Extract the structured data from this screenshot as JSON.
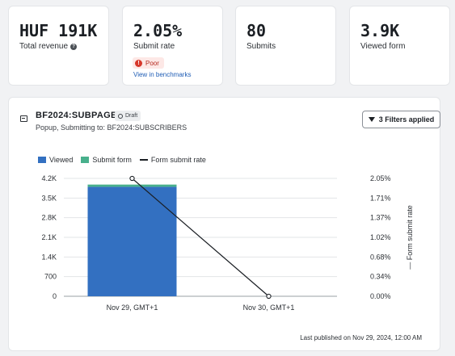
{
  "metrics": [
    {
      "value": "HUF 191K",
      "label": "Total revenue",
      "has_help": true
    },
    {
      "value": "2.05%",
      "label": "Submit rate",
      "badge": "Poor",
      "badge_icon": "alert-icon",
      "link": "View in benchmarks"
    },
    {
      "value": "80",
      "label": "Submits"
    },
    {
      "value": "3.9K",
      "label": "Viewed form"
    }
  ],
  "form": {
    "title": "BF2024:SUBPAGES",
    "status_badge": "Draft",
    "subtitle": "Popup, Submitting to: BF2024:SUBSCRIBERS",
    "filters_button": "3 Filters applied"
  },
  "legend": {
    "viewed": "Viewed",
    "submit": "Submit form",
    "rate": "Form submit rate"
  },
  "colors": {
    "viewed": "#3370c1",
    "submit": "#48b08c",
    "rate": "#1b1f24",
    "poor": "#d7382c"
  },
  "chart_data": {
    "type": "bar",
    "categories": [
      "Nov 29, GMT+1",
      "Nov 30, GMT+1"
    ],
    "series": [
      {
        "name": "Viewed",
        "type": "bar",
        "stack": "main",
        "axis": "left",
        "values": [
          3900,
          0
        ]
      },
      {
        "name": "Submit form",
        "type": "bar",
        "stack": "main",
        "axis": "left",
        "values": [
          80,
          0
        ]
      },
      {
        "name": "Form submit rate",
        "type": "line",
        "axis": "right",
        "values": [
          2.05,
          0.0
        ]
      }
    ],
    "y_ticks": [
      "0",
      "700",
      "1.4K",
      "2.1K",
      "2.8K",
      "3.5K",
      "4.2K"
    ],
    "ylim": [
      0,
      4200
    ],
    "y2_ticks": [
      "0.00%",
      "0.34%",
      "0.68%",
      "1.02%",
      "1.37%",
      "1.71%",
      "2.05%"
    ],
    "y2lim": [
      0,
      2.05
    ],
    "y2label": "Form submit rate",
    "legend_position": "top-left",
    "grid": true
  },
  "footer": "Last published on Nov 29, 2024, 12:00 AM"
}
